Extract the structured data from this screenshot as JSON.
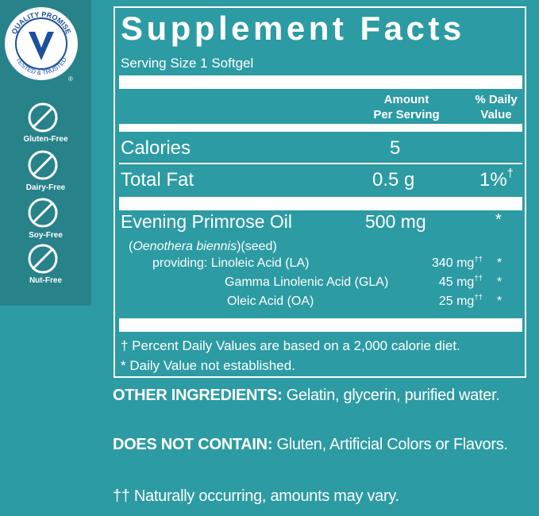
{
  "badges": {
    "seal": {
      "top": "QUALITY PROMISE",
      "bottom": "TESTED & TRUSTED",
      "mark": "®"
    },
    "items": [
      "Gluten-Free",
      "Dairy-Free",
      "Soy-Free",
      "Nut-Free"
    ]
  },
  "facts": {
    "title": "Supplement Facts",
    "serving": "Serving Size 1 Softgel",
    "header": {
      "amount": [
        "Amount",
        "Per Serving"
      ],
      "daily": [
        "% Daily",
        "Value"
      ]
    },
    "rows": [
      {
        "name": "Calories",
        "amount": "5"
      },
      {
        "name": "Total Fat",
        "amount": "0.5 g",
        "daily": "1%",
        "note": "†"
      },
      {
        "name": "Evening Primrose Oil",
        "amount": "500 mg",
        "daily": "*"
      }
    ],
    "source": [
      "(",
      "Oenothera biennis",
      ")(seed)"
    ],
    "sub": [
      {
        "name": "providing: Linoleic Acid (LA)",
        "amount": "340 mg",
        "note": "††",
        "daily": "*"
      },
      {
        "name": "Gamma Linolenic Acid (GLA)",
        "amount": "45 mg",
        "note": "††",
        "daily": "*"
      },
      {
        "name": "Oleic Acid (OA)",
        "amount": "25 mg",
        "note": "††",
        "daily": "*"
      }
    ],
    "footnotes": [
      "† Percent Daily Values are based on a 2,000 calorie diet.",
      "* Daily Value not established."
    ]
  },
  "other": {
    "label": "OTHER INGREDIENTS:",
    "text": " Gelatin, glycerin, purified water."
  },
  "excludes": {
    "label": "DOES NOT CONTAIN:",
    "text": " Gluten, Artificial Colors or Flavors."
  },
  "note": "†† Naturally occurring, amounts may vary."
}
